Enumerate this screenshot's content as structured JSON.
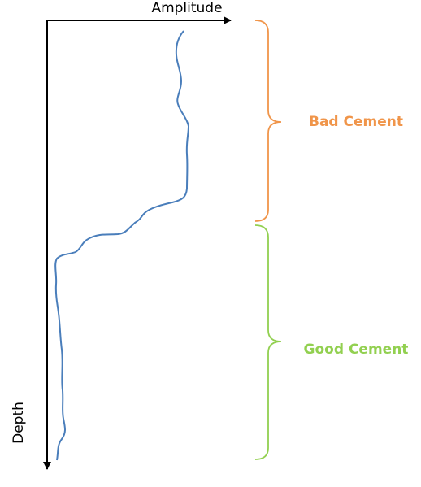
{
  "axes": {
    "x_label": "Amplitude",
    "y_label": "Depth"
  },
  "zones": [
    {
      "label": "Bad Cement",
      "color": "#f0954a"
    },
    {
      "label": "Good Cement",
      "color": "#92d050"
    }
  ]
}
